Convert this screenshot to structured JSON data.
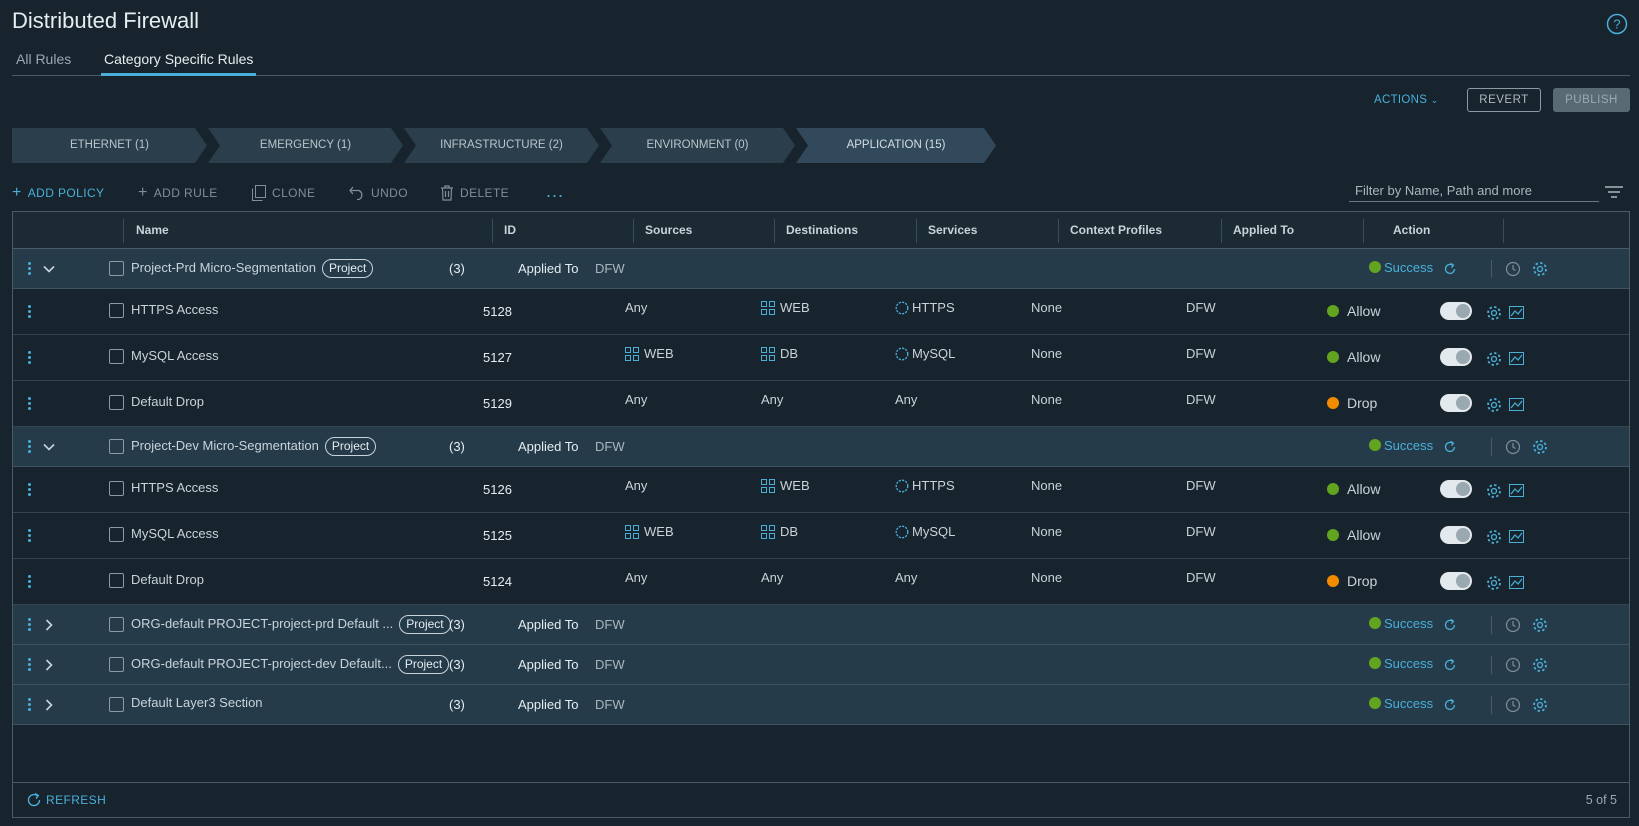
{
  "page": {
    "title": "Distributed Firewall"
  },
  "tabs": [
    {
      "label": "All Rules",
      "active": false
    },
    {
      "label": "Category Specific Rules",
      "active": true
    }
  ],
  "top_actions": {
    "actions": "ACTIONS",
    "revert": "REVERT",
    "publish": "PUBLISH"
  },
  "categories": [
    {
      "label": "ETHERNET (1)",
      "active": false
    },
    {
      "label": "EMERGENCY (1)",
      "active": false
    },
    {
      "label": "INFRASTRUCTURE (2)",
      "active": false
    },
    {
      "label": "ENVIRONMENT (0)",
      "active": false
    },
    {
      "label": "APPLICATION (15)",
      "active": true
    }
  ],
  "toolbar": {
    "add_policy": "ADD POLICY",
    "add_rule": "ADD RULE",
    "clone": "CLONE",
    "undo": "UNDO",
    "delete": "DELETE",
    "more": "..."
  },
  "filter": {
    "placeholder": "Filter by Name, Path and more"
  },
  "columns": [
    "Name",
    "ID",
    "Sources",
    "Destinations",
    "Services",
    "Context Profiles",
    "Applied To",
    "Action"
  ],
  "policies": [
    {
      "name": "Project-Prd Micro-Segmentation",
      "badge": "Project",
      "count": "(3)",
      "applied_label": "Applied To",
      "applied_value": "DFW",
      "status": "Success",
      "expanded": true,
      "rules": [
        {
          "name": "HTTPS Access",
          "id": "5128",
          "source": "Any",
          "source_group": false,
          "dest": "WEB",
          "dest_group": true,
          "service": "HTTPS",
          "service_obj": true,
          "context": "None",
          "applied": "DFW",
          "action": "Allow"
        },
        {
          "name": "MySQL Access",
          "id": "5127",
          "source": "WEB",
          "source_group": true,
          "dest": "DB",
          "dest_group": true,
          "service": "MySQL",
          "service_obj": true,
          "context": "None",
          "applied": "DFW",
          "action": "Allow"
        },
        {
          "name": "Default Drop",
          "id": "5129",
          "source": "Any",
          "source_group": false,
          "dest": "Any",
          "dest_group": false,
          "service": "Any",
          "service_obj": false,
          "context": "None",
          "applied": "DFW",
          "action": "Drop"
        }
      ]
    },
    {
      "name": "Project-Dev Micro-Segmentation",
      "badge": "Project",
      "count": "(3)",
      "applied_label": "Applied To",
      "applied_value": "DFW",
      "status": "Success",
      "expanded": true,
      "rules": [
        {
          "name": "HTTPS Access",
          "id": "5126",
          "source": "Any",
          "source_group": false,
          "dest": "WEB",
          "dest_group": true,
          "service": "HTTPS",
          "service_obj": true,
          "context": "None",
          "applied": "DFW",
          "action": "Allow"
        },
        {
          "name": "MySQL Access",
          "id": "5125",
          "source": "WEB",
          "source_group": true,
          "dest": "DB",
          "dest_group": true,
          "service": "MySQL",
          "service_obj": true,
          "context": "None",
          "applied": "DFW",
          "action": "Allow"
        },
        {
          "name": "Default Drop",
          "id": "5124",
          "source": "Any",
          "source_group": false,
          "dest": "Any",
          "dest_group": false,
          "service": "Any",
          "service_obj": false,
          "context": "None",
          "applied": "DFW",
          "action": "Drop"
        }
      ]
    },
    {
      "name": "ORG-default PROJECT-project-prd Default ...",
      "badge": "Project",
      "count": "(3)",
      "applied_label": "Applied To",
      "applied_value": "DFW",
      "status": "Success",
      "expanded": false,
      "rules": []
    },
    {
      "name": "ORG-default PROJECT-project-dev Default...",
      "badge": "Project",
      "count": "(3)",
      "applied_label": "Applied To",
      "applied_value": "DFW",
      "status": "Success",
      "expanded": false,
      "rules": []
    },
    {
      "name": "Default Layer3 Section",
      "badge": "",
      "count": "(3)",
      "applied_label": "Applied To",
      "applied_value": "DFW",
      "status": "Success",
      "expanded": false,
      "rules": []
    }
  ],
  "footer": {
    "refresh": "REFRESH",
    "pagination": "5 of 5"
  },
  "colors": {
    "accent": "#49afd9",
    "allow": "#62a420",
    "drop": "#f38b00",
    "success": "#62a420",
    "policy_row": "#253b4a",
    "background": "#17242d"
  }
}
